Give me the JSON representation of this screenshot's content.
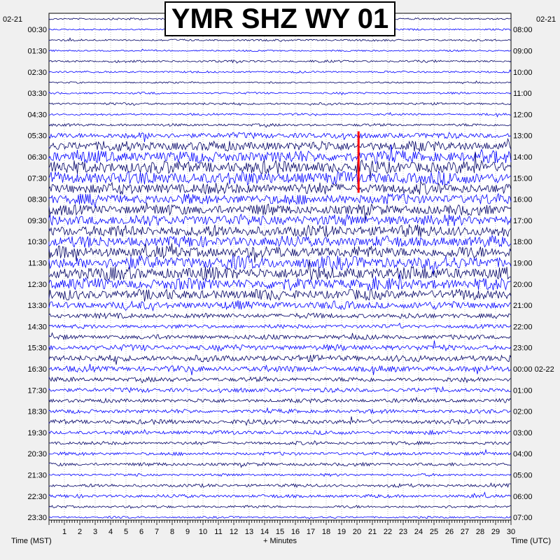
{
  "chart_data": {
    "type": "line",
    "title": "YMR SHZ WY 01",
    "left_date": "02-21",
    "right_date": "02-21",
    "left_time_labels": [
      "00:30",
      "01:30",
      "02:30",
      "03:30",
      "04:30",
      "05:30",
      "06:30",
      "07:30",
      "08:30",
      "09:30",
      "10:30",
      "11:30",
      "12:30",
      "13:30",
      "14:30",
      "15:30",
      "16:30",
      "17:30",
      "18:30",
      "19:30",
      "20:30",
      "21:30",
      "22:30",
      "23:30"
    ],
    "right_time_labels": [
      "08:00",
      "09:00",
      "10:00",
      "11:00",
      "12:00",
      "13:00",
      "14:00",
      "15:00",
      "16:00",
      "17:00",
      "18:00",
      "19:00",
      "20:00",
      "21:00",
      "22:00",
      "23:00",
      "00:00 02-22",
      "01:00",
      "02:00",
      "03:00",
      "04:00",
      "05:00",
      "06:00",
      "07:00"
    ],
    "x_tick_labels": [
      "1",
      "2",
      "3",
      "4",
      "5",
      "6",
      "7",
      "8",
      "9",
      "10",
      "11",
      "12",
      "13",
      "14",
      "15",
      "16",
      "17",
      "18",
      "19",
      "20",
      "21",
      "22",
      "23",
      "24",
      "25",
      "26",
      "27",
      "28",
      "29",
      "30"
    ],
    "xlabel_left": "Time (MST)",
    "xlabel_center": "+ Minutes",
    "xlabel_right": "Time (UTC)",
    "xlim": [
      0,
      30
    ],
    "trace_count": 48,
    "trace_colors": [
      "#000066",
      "#0000ff"
    ],
    "event_marker": {
      "minute": 20.1,
      "trace_start": 11,
      "trace_end": 16,
      "color": "#ff0000"
    },
    "trace_amplitudes": [
      0.15,
      0.12,
      0.15,
      0.12,
      0.18,
      0.15,
      0.12,
      0.15,
      0.18,
      0.15,
      0.2,
      0.45,
      0.75,
      0.9,
      1.0,
      1.0,
      0.85,
      0.8,
      0.8,
      0.85,
      0.9,
      0.85,
      0.9,
      1.0,
      1.0,
      0.9,
      0.8,
      0.6,
      0.4,
      0.3,
      0.35,
      0.45,
      0.5,
      0.45,
      0.35,
      0.35,
      0.3,
      0.3,
      0.35,
      0.3,
      0.25,
      0.25,
      0.25,
      0.2,
      0.25,
      0.25,
      0.2,
      0.15
    ],
    "grid": true
  }
}
